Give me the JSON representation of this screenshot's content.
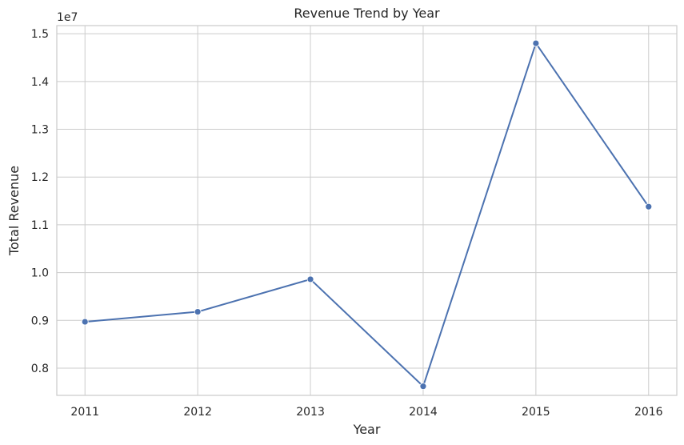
{
  "chart_data": {
    "type": "line",
    "title": "Revenue Trend by Year",
    "xlabel": "Year",
    "ylabel": "Total Revenue",
    "offset_text": "1e7",
    "x": [
      2011,
      2012,
      2013,
      2014,
      2015,
      2016
    ],
    "x_tick_labels": [
      "2011",
      "2012",
      "2013",
      "2014",
      "2015",
      "2016"
    ],
    "series": [
      {
        "values": [
          8970000,
          9180000,
          9860000,
          7620000,
          14800000,
          11380000
        ],
        "color": "#4c72b0",
        "marker": "circle"
      }
    ],
    "xlim": [
      2010.75,
      2016.25
    ],
    "ylim": [
      7430000,
      15170000
    ],
    "y_ticks": [
      8000000,
      9000000,
      10000000,
      11000000,
      12000000,
      13000000,
      14000000,
      15000000
    ],
    "y_tick_labels": [
      "0.8",
      "0.9",
      "1.0",
      "1.1",
      "1.2",
      "1.3",
      "1.4",
      "1.5"
    ],
    "grid": true,
    "legend": "none"
  }
}
